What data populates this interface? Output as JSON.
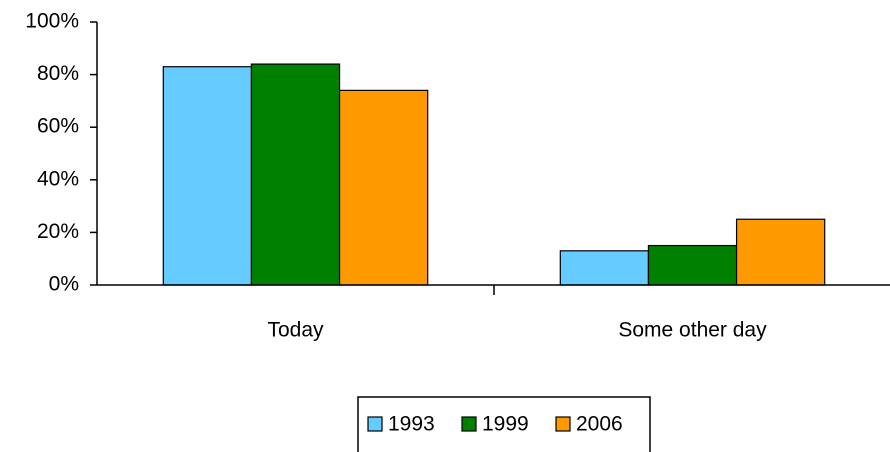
{
  "chart_data": {
    "type": "bar",
    "categories": [
      "Today",
      "Some other day"
    ],
    "series": [
      {
        "name": "1993",
        "color": "#66ccff",
        "values": [
          83,
          13
        ]
      },
      {
        "name": "1999",
        "color": "#008000",
        "values": [
          84,
          15
        ]
      },
      {
        "name": "2006",
        "color": "#ff9900",
        "values": [
          74,
          25
        ]
      }
    ],
    "ylim": [
      0,
      100
    ],
    "yticks": [
      {
        "value": 0,
        "label": "0%"
      },
      {
        "value": 20,
        "label": "20%"
      },
      {
        "value": 40,
        "label": "40%"
      },
      {
        "value": 60,
        "label": "60%"
      },
      {
        "value": 80,
        "label": "80%"
      },
      {
        "value": 100,
        "label": "100%"
      }
    ],
    "legend": "bottom"
  }
}
